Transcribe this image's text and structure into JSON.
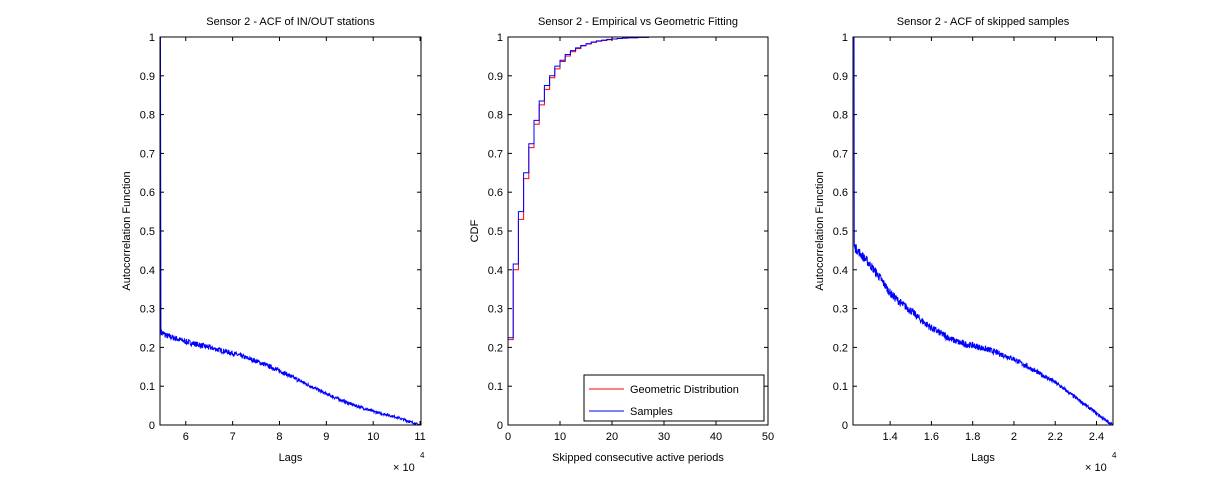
{
  "chart_data": [
    {
      "type": "line",
      "title": "Sensor 2 - ACF of IN/OUT stations",
      "xlabel": "Lags",
      "ylabel": "Autocorrelation Function",
      "x_multiplier_label": "× 10",
      "x_multiplier_exp": "4",
      "xlim": [
        5.45,
        11.02
      ],
      "ylim": [
        0,
        1
      ],
      "xticks": [
        "6",
        "7",
        "8",
        "9",
        "10",
        "11"
      ],
      "yticks": [
        "0",
        "0.1",
        "0.2",
        "0.3",
        "0.4",
        "0.5",
        "0.6",
        "0.7",
        "0.8",
        "0.9",
        "1"
      ],
      "series": [
        {
          "color": "#0000ff",
          "spike": {
            "x": 5.46,
            "y": 1.0
          },
          "x": [
            5.47,
            5.6,
            6.0,
            6.5,
            7.0,
            7.5,
            8.0,
            8.5,
            9.0,
            9.5,
            10.0,
            10.5,
            11.0
          ],
          "y": [
            0.24,
            0.23,
            0.215,
            0.2,
            0.185,
            0.165,
            0.14,
            0.11,
            0.08,
            0.055,
            0.035,
            0.02,
            0.0
          ],
          "noise": 0.008
        }
      ]
    },
    {
      "type": "line",
      "title": "Sensor 2 - Empirical vs Geometric Fitting",
      "xlabel": "Skipped consecutive active periods",
      "ylabel": "CDF",
      "xlim": [
        0,
        50
      ],
      "ylim": [
        0,
        1
      ],
      "xticks": [
        "0",
        "10",
        "20",
        "30",
        "40",
        "50"
      ],
      "yticks": [
        "0",
        "0.1",
        "0.2",
        "0.3",
        "0.4",
        "0.5",
        "0.6",
        "0.7",
        "0.8",
        "0.9",
        "1"
      ],
      "legend_position": "bottom-right",
      "series": [
        {
          "name": "Geometric Distribution",
          "color": "#ff0000",
          "step": true,
          "x": [
            0,
            1,
            2,
            3,
            4,
            5,
            6,
            7,
            8,
            9,
            10,
            11,
            12,
            13,
            14,
            15,
            16,
            17,
            18,
            19,
            20,
            21,
            22,
            23,
            24,
            25,
            26,
            27
          ],
          "y": [
            0.22,
            0.4,
            0.53,
            0.635,
            0.715,
            0.775,
            0.825,
            0.865,
            0.895,
            0.918,
            0.937,
            0.951,
            0.962,
            0.97,
            0.977,
            0.982,
            0.986,
            0.989,
            0.991,
            0.993,
            0.995,
            0.996,
            0.997,
            0.998,
            0.998,
            0.999,
            0.999,
            1.0
          ]
        },
        {
          "name": "Samples",
          "color": "#0000ff",
          "step": true,
          "x": [
            0,
            1,
            2,
            3,
            4,
            5,
            6,
            7,
            8,
            9,
            10,
            11,
            12,
            13,
            14,
            15,
            16,
            17,
            18,
            19,
            20,
            21,
            22,
            23,
            24,
            25,
            26,
            27
          ],
          "y": [
            0.225,
            0.415,
            0.55,
            0.65,
            0.725,
            0.785,
            0.835,
            0.875,
            0.9,
            0.925,
            0.94,
            0.955,
            0.965,
            0.972,
            0.978,
            0.983,
            0.987,
            0.99,
            0.992,
            0.994,
            0.995,
            0.996,
            0.997,
            0.998,
            0.998,
            0.999,
            0.999,
            1.0
          ]
        }
      ]
    },
    {
      "type": "line",
      "title": "Sensor 2 - ACF of skipped samples",
      "xlabel": "Lags",
      "ylabel": "Autocorrelation Function",
      "x_multiplier_label": "× 10",
      "x_multiplier_exp": "4",
      "xlim": [
        1.22,
        2.48
      ],
      "ylim": [
        0,
        1
      ],
      "xticks": [
        "1.4",
        "1.6",
        "1.8",
        "2",
        "2.2",
        "2.4"
      ],
      "yticks": [
        "0",
        "0.1",
        "0.2",
        "0.3",
        "0.4",
        "0.5",
        "0.6",
        "0.7",
        "0.8",
        "0.9",
        "1"
      ],
      "series": [
        {
          "color": "#0000ff",
          "spike": {
            "x": 1.225,
            "y": 1.0
          },
          "x": [
            1.226,
            1.25,
            1.3,
            1.35,
            1.4,
            1.45,
            1.5,
            1.55,
            1.6,
            1.65,
            1.7,
            1.75,
            1.8,
            1.85,
            1.9,
            1.95,
            2.0,
            2.05,
            2.1,
            2.15,
            2.2,
            2.25,
            2.3,
            2.35,
            2.4,
            2.45,
            2.48
          ],
          "y": [
            0.46,
            0.445,
            0.415,
            0.38,
            0.34,
            0.315,
            0.295,
            0.27,
            0.25,
            0.235,
            0.22,
            0.21,
            0.205,
            0.198,
            0.19,
            0.18,
            0.17,
            0.155,
            0.14,
            0.125,
            0.11,
            0.09,
            0.07,
            0.05,
            0.03,
            0.01,
            0.0
          ],
          "noise": 0.012
        }
      ]
    }
  ]
}
